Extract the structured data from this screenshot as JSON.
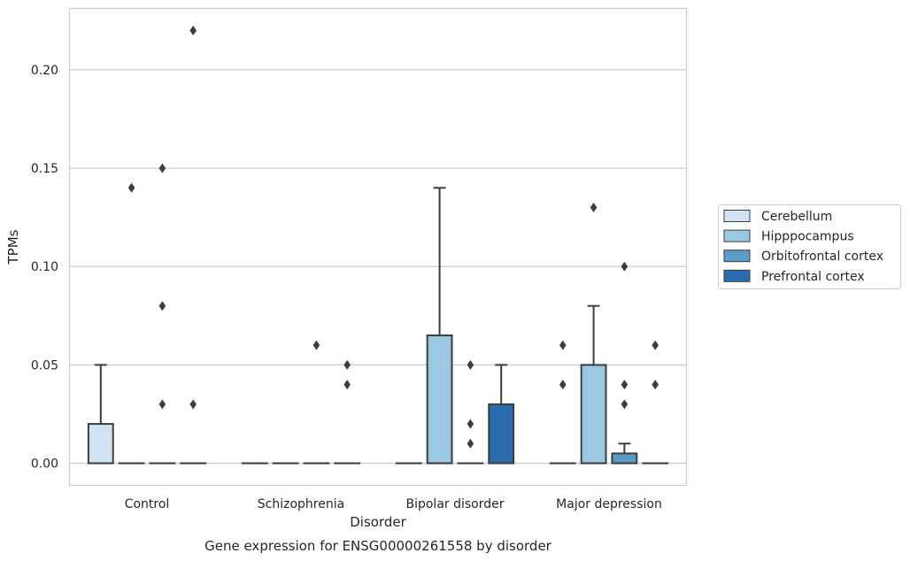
{
  "chart_data": {
    "type": "box",
    "title": "Gene expression for ENSG00000261558 by disorder",
    "xlabel": "Disorder",
    "ylabel": "TPMs",
    "ylim": [
      -0.011,
      0.231
    ],
    "yticks": [
      0.0,
      0.05,
      0.1,
      0.15,
      0.2
    ],
    "ytick_labels": [
      "0.00",
      "0.05",
      "0.10",
      "0.15",
      "0.20"
    ],
    "grid": true,
    "legend_position": "right",
    "categories": [
      "Control",
      "Schizophrenia",
      "Bipolar disorder",
      "Major depression"
    ],
    "series": [
      {
        "name": "Cerebellum",
        "color": "#d1e2f2",
        "boxes": [
          {
            "q1": 0.0,
            "median": 0.0,
            "q3": 0.02,
            "whisker_low": 0.0,
            "whisker_high": 0.05,
            "outliers": []
          },
          {
            "q1": 0.0,
            "median": 0.0,
            "q3": 0.0,
            "whisker_low": 0.0,
            "whisker_high": 0.0,
            "outliers": []
          },
          {
            "q1": 0.0,
            "median": 0.0,
            "q3": 0.0,
            "whisker_low": 0.0,
            "whisker_high": 0.0,
            "outliers": []
          },
          {
            "q1": 0.0,
            "median": 0.0,
            "q3": 0.0,
            "whisker_low": 0.0,
            "whisker_high": 0.0,
            "outliers": [
              0.04,
              0.06
            ]
          }
        ]
      },
      {
        "name": "Hipppocampus",
        "color": "#9ac8e0",
        "boxes": [
          {
            "q1": 0.0,
            "median": 0.0,
            "q3": 0.0,
            "whisker_low": 0.0,
            "whisker_high": 0.0,
            "outliers": [
              0.14
            ]
          },
          {
            "q1": 0.0,
            "median": 0.0,
            "q3": 0.0,
            "whisker_low": 0.0,
            "whisker_high": 0.0,
            "outliers": []
          },
          {
            "q1": 0.0,
            "median": 0.0,
            "q3": 0.065,
            "whisker_low": 0.0,
            "whisker_high": 0.14,
            "outliers": []
          },
          {
            "q1": 0.0,
            "median": 0.0,
            "q3": 0.05,
            "whisker_low": 0.0,
            "whisker_high": 0.08,
            "outliers": [
              0.13
            ]
          }
        ]
      },
      {
        "name": "Orbitofrontal cortex",
        "color": "#5a9cc7",
        "boxes": [
          {
            "q1": 0.0,
            "median": 0.0,
            "q3": 0.0,
            "whisker_low": 0.0,
            "whisker_high": 0.0,
            "outliers": [
              0.03,
              0.08,
              0.15
            ]
          },
          {
            "q1": 0.0,
            "median": 0.0,
            "q3": 0.0,
            "whisker_low": 0.0,
            "whisker_high": 0.0,
            "outliers": [
              0.06
            ]
          },
          {
            "q1": 0.0,
            "median": 0.0,
            "q3": 0.0,
            "whisker_low": 0.0,
            "whisker_high": 0.0,
            "outliers": [
              0.01,
              0.02,
              0.05
            ]
          },
          {
            "q1": 0.0,
            "median": 0.0,
            "q3": 0.005,
            "whisker_low": 0.0,
            "whisker_high": 0.01,
            "outliers": [
              0.03,
              0.04,
              0.1
            ]
          }
        ]
      },
      {
        "name": "Prefrontal cortex",
        "color": "#2a6cac",
        "boxes": [
          {
            "q1": 0.0,
            "median": 0.0,
            "q3": 0.0,
            "whisker_low": 0.0,
            "whisker_high": 0.0,
            "outliers": [
              0.03,
              0.22
            ]
          },
          {
            "q1": 0.0,
            "median": 0.0,
            "q3": 0.0,
            "whisker_low": 0.0,
            "whisker_high": 0.0,
            "outliers": [
              0.04,
              0.05
            ]
          },
          {
            "q1": 0.0,
            "median": 0.0,
            "q3": 0.03,
            "whisker_low": 0.0,
            "whisker_high": 0.05,
            "outliers": []
          },
          {
            "q1": 0.0,
            "median": 0.0,
            "q3": 0.0,
            "whisker_low": 0.0,
            "whisker_high": 0.0,
            "outliers": [
              0.04,
              0.06
            ]
          }
        ]
      }
    ]
  }
}
